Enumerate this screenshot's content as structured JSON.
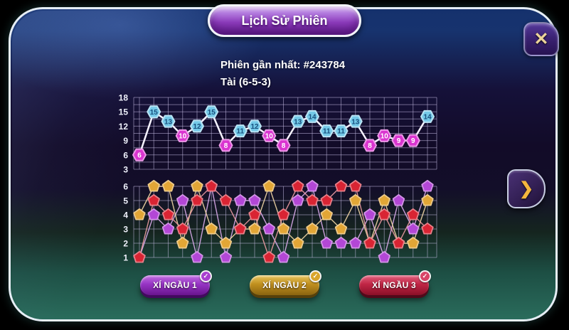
{
  "title": "Lịch Sử Phiên",
  "session": {
    "latest_label": "Phiên gần nhất: #243784",
    "result_label": "Tài (6-5-3)"
  },
  "icons": {
    "close_icon": "✕",
    "next_icon": "❯",
    "check_icon": "✓"
  },
  "dice_buttons": [
    {
      "label": "XÍ NGẦU 1",
      "color": "#9634c4",
      "checked": true
    },
    {
      "label": "XÍ NGẦU 2",
      "color": "#c08f1e",
      "checked": true
    },
    {
      "label": "XÍ NGẦU 3",
      "color": "#c02645",
      "checked": true
    }
  ],
  "chart_data": [
    {
      "type": "line",
      "name": "session-totals",
      "values": [
        6,
        15,
        13,
        10,
        12,
        15,
        8,
        11,
        12,
        10,
        8,
        13,
        14,
        11,
        11,
        13,
        8,
        10,
        9,
        9,
        14
      ],
      "yticks": [
        3,
        6,
        9,
        12,
        15,
        18
      ],
      "ylim": [
        3,
        18
      ],
      "grid": true,
      "legend_position": "none",
      "marker_colors": {
        "tai_high": "#74c9e8",
        "xiu_low": "#da35d0"
      },
      "marker_text_colors": {
        "tai_high": "#174f7d",
        "xiu_low": "#ffffff"
      },
      "threshold_note": "totals 11-18 drawn as blue (Tài), 3-10 drawn as magenta (Xỉu)",
      "line_color": "#f6f3ff"
    },
    {
      "type": "line",
      "name": "dice-values",
      "series": [
        {
          "name": "XÍ NGẦU 1",
          "color": "#b347d6",
          "values": [
            1,
            4,
            3,
            5,
            1,
            6,
            1,
            5,
            5,
            3,
            1,
            5,
            6,
            2,
            2,
            2,
            4,
            1,
            5,
            3,
            6
          ]
        },
        {
          "name": "XÍ NGẦU 2",
          "color": "#e2a636",
          "values": [
            4,
            6,
            6,
            2,
            6,
            3,
            2,
            3,
            3,
            6,
            3,
            2,
            3,
            4,
            3,
            5,
            2,
            5,
            2,
            2,
            5
          ]
        },
        {
          "name": "XÍ NGẦU 3",
          "color": "#d92433",
          "values": [
            1,
            5,
            4,
            3,
            5,
            6,
            5,
            3,
            4,
            1,
            4,
            6,
            5,
            5,
            6,
            6,
            2,
            4,
            2,
            4,
            3
          ]
        }
      ],
      "yticks": [
        1,
        2,
        3,
        4,
        5,
        6
      ],
      "ylim": [
        1,
        6
      ],
      "grid": true,
      "legend_position": "none"
    }
  ]
}
